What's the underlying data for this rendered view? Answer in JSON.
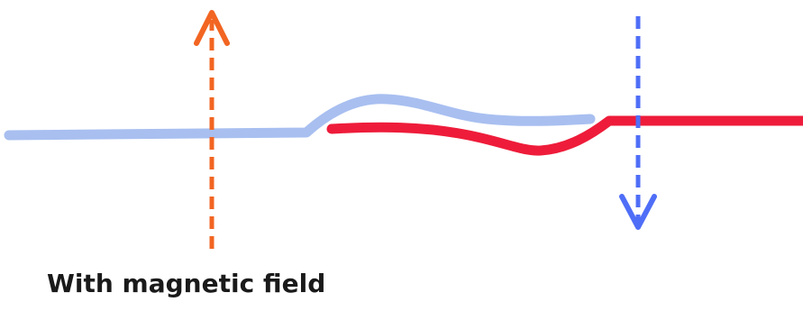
{
  "caption": "With magnetic field",
  "colors": {
    "up_arrow": "#F26522",
    "down_arrow": "#4F6EF7",
    "light_wave": "#A8BFF0",
    "red_wave": "#EE1C3A",
    "caption_text": "#1a1a1a"
  },
  "elements": {
    "up_arrow": {
      "direction": "up",
      "style": "dashed"
    },
    "down_arrow": {
      "direction": "down",
      "style": "dashed"
    }
  }
}
